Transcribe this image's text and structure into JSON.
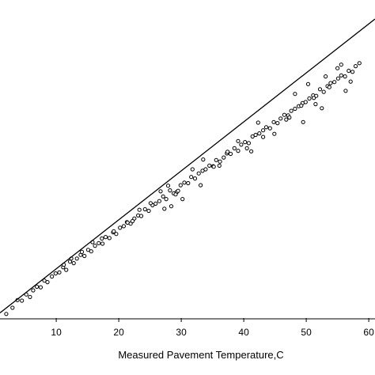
{
  "chart_data": {
    "type": "scatter",
    "title": "",
    "xlabel": "Measured Pavement Temperature,C",
    "ylabel": "",
    "xlim": [
      1,
      61
    ],
    "ylim": [
      0,
      62
    ],
    "x_ticks": [
      10,
      20,
      30,
      40,
      50,
      60
    ],
    "x_tick_labels": [
      "10",
      "20",
      "30",
      "40",
      "50",
      "60"
    ],
    "grid": false,
    "legend": "none",
    "fit_line": {
      "x": [
        1,
        61
      ],
      "y": [
        1.0,
        58.3
      ]
    },
    "series": [
      {
        "marker": "open-circle",
        "x": [
          2,
          3,
          3.8,
          4.5,
          5.2,
          5.8,
          6.3,
          6.9,
          7.5,
          8.1,
          8.6,
          9.3,
          9.9,
          10.5,
          11.1,
          11.6,
          12.2,
          12.8,
          13.3,
          13.9,
          14.5,
          15.1,
          15.6,
          16.2,
          16.8,
          17.4,
          17.9,
          18.5,
          19.1,
          19.6,
          20.2,
          20.8,
          21.3,
          21.9,
          22.5,
          23.1,
          23.6,
          24.2,
          24.8,
          25.4,
          25.9,
          26.5,
          27.1,
          27.6,
          28.2,
          28.8,
          29.3,
          29.9,
          30.5,
          31.1,
          31.6,
          32.2,
          32.8,
          33.4,
          33.9,
          34.5,
          35.1,
          35.6,
          36.2,
          36.8,
          37.3,
          37.9,
          38.5,
          39.1,
          39.6,
          40.2,
          40.8,
          41.4,
          41.9,
          42.5,
          43.1,
          43.6,
          44.2,
          44.8,
          45.4,
          45.9,
          46.5,
          47.1,
          47.6,
          48.2,
          48.8,
          49.4,
          49.9,
          50.5,
          51.1,
          51.6,
          52.2,
          52.8,
          53.4,
          53.9,
          54.5,
          55.1,
          55.6,
          56.2,
          56.8,
          57.4,
          57.9,
          58.5,
          11.2,
          12.4,
          14.1,
          15.8,
          17.3,
          19.2,
          21.4,
          23.3,
          25.1,
          26.7,
          27.9,
          28.4,
          29.1,
          30.2,
          31.8,
          33.5,
          35.2,
          37.4,
          39.1,
          40.5,
          42.3,
          43.1,
          44.9,
          46.8,
          48.2,
          49.5,
          50.3,
          51.2,
          52.5,
          53.7,
          55.0,
          56.3,
          57.1,
          22.2,
          27.3,
          29.5,
          33.1,
          36.1,
          41.2,
          47.3,
          49.2,
          51.5,
          53.1,
          55.6
        ],
        "y": [
          0.8,
          2.0,
          3.5,
          3.4,
          4.6,
          4.1,
          5.4,
          6.1,
          6.0,
          7.3,
          7.0,
          8.1,
          8.7,
          8.9,
          9.9,
          9.4,
          11.0,
          10.7,
          11.6,
          12.3,
          12.1,
          13.3,
          13.0,
          14.1,
          14.6,
          14.5,
          15.8,
          15.6,
          16.7,
          16.4,
          17.6,
          17.9,
          18.7,
          18.4,
          19.4,
          20.0,
          19.9,
          21.2,
          20.9,
          22.0,
          22.3,
          22.8,
          23.7,
          23.2,
          24.9,
          24.3,
          24.6,
          25.9,
          26.4,
          26.3,
          27.5,
          27.2,
          28.2,
          28.7,
          29.0,
          29.7,
          29.6,
          30.8,
          30.5,
          31.3,
          32.1,
          32.0,
          33.1,
          32.6,
          33.8,
          34.3,
          34.1,
          35.4,
          35.7,
          36.0,
          36.6,
          37.2,
          37.0,
          38.2,
          38.0,
          38.9,
          39.6,
          39.5,
          40.4,
          40.8,
          41.3,
          41.9,
          42.1,
          42.8,
          43.4,
          43.3,
          44.6,
          44.1,
          45.2,
          45.8,
          46.0,
          46.7,
          47.3,
          47.1,
          48.2,
          48.0,
          49.1,
          49.7,
          10.4,
          11.6,
          12.9,
          14.8,
          15.5,
          16.9,
          18.6,
          21.1,
          22.4,
          24.7,
          25.8,
          21.8,
          24.1,
          23.2,
          29.0,
          30.9,
          29.5,
          32.4,
          34.5,
          33.1,
          38.1,
          35.3,
          35.9,
          38.7,
          43.7,
          38.2,
          45.6,
          42.9,
          40.9,
          45.0,
          48.7,
          44.3,
          46.1,
          18.9,
          21.3,
          24.8,
          25.9,
          29.7,
          32.5,
          39.1,
          41.4,
          41.7,
          47.1,
          49.4
        ]
      }
    ]
  }
}
